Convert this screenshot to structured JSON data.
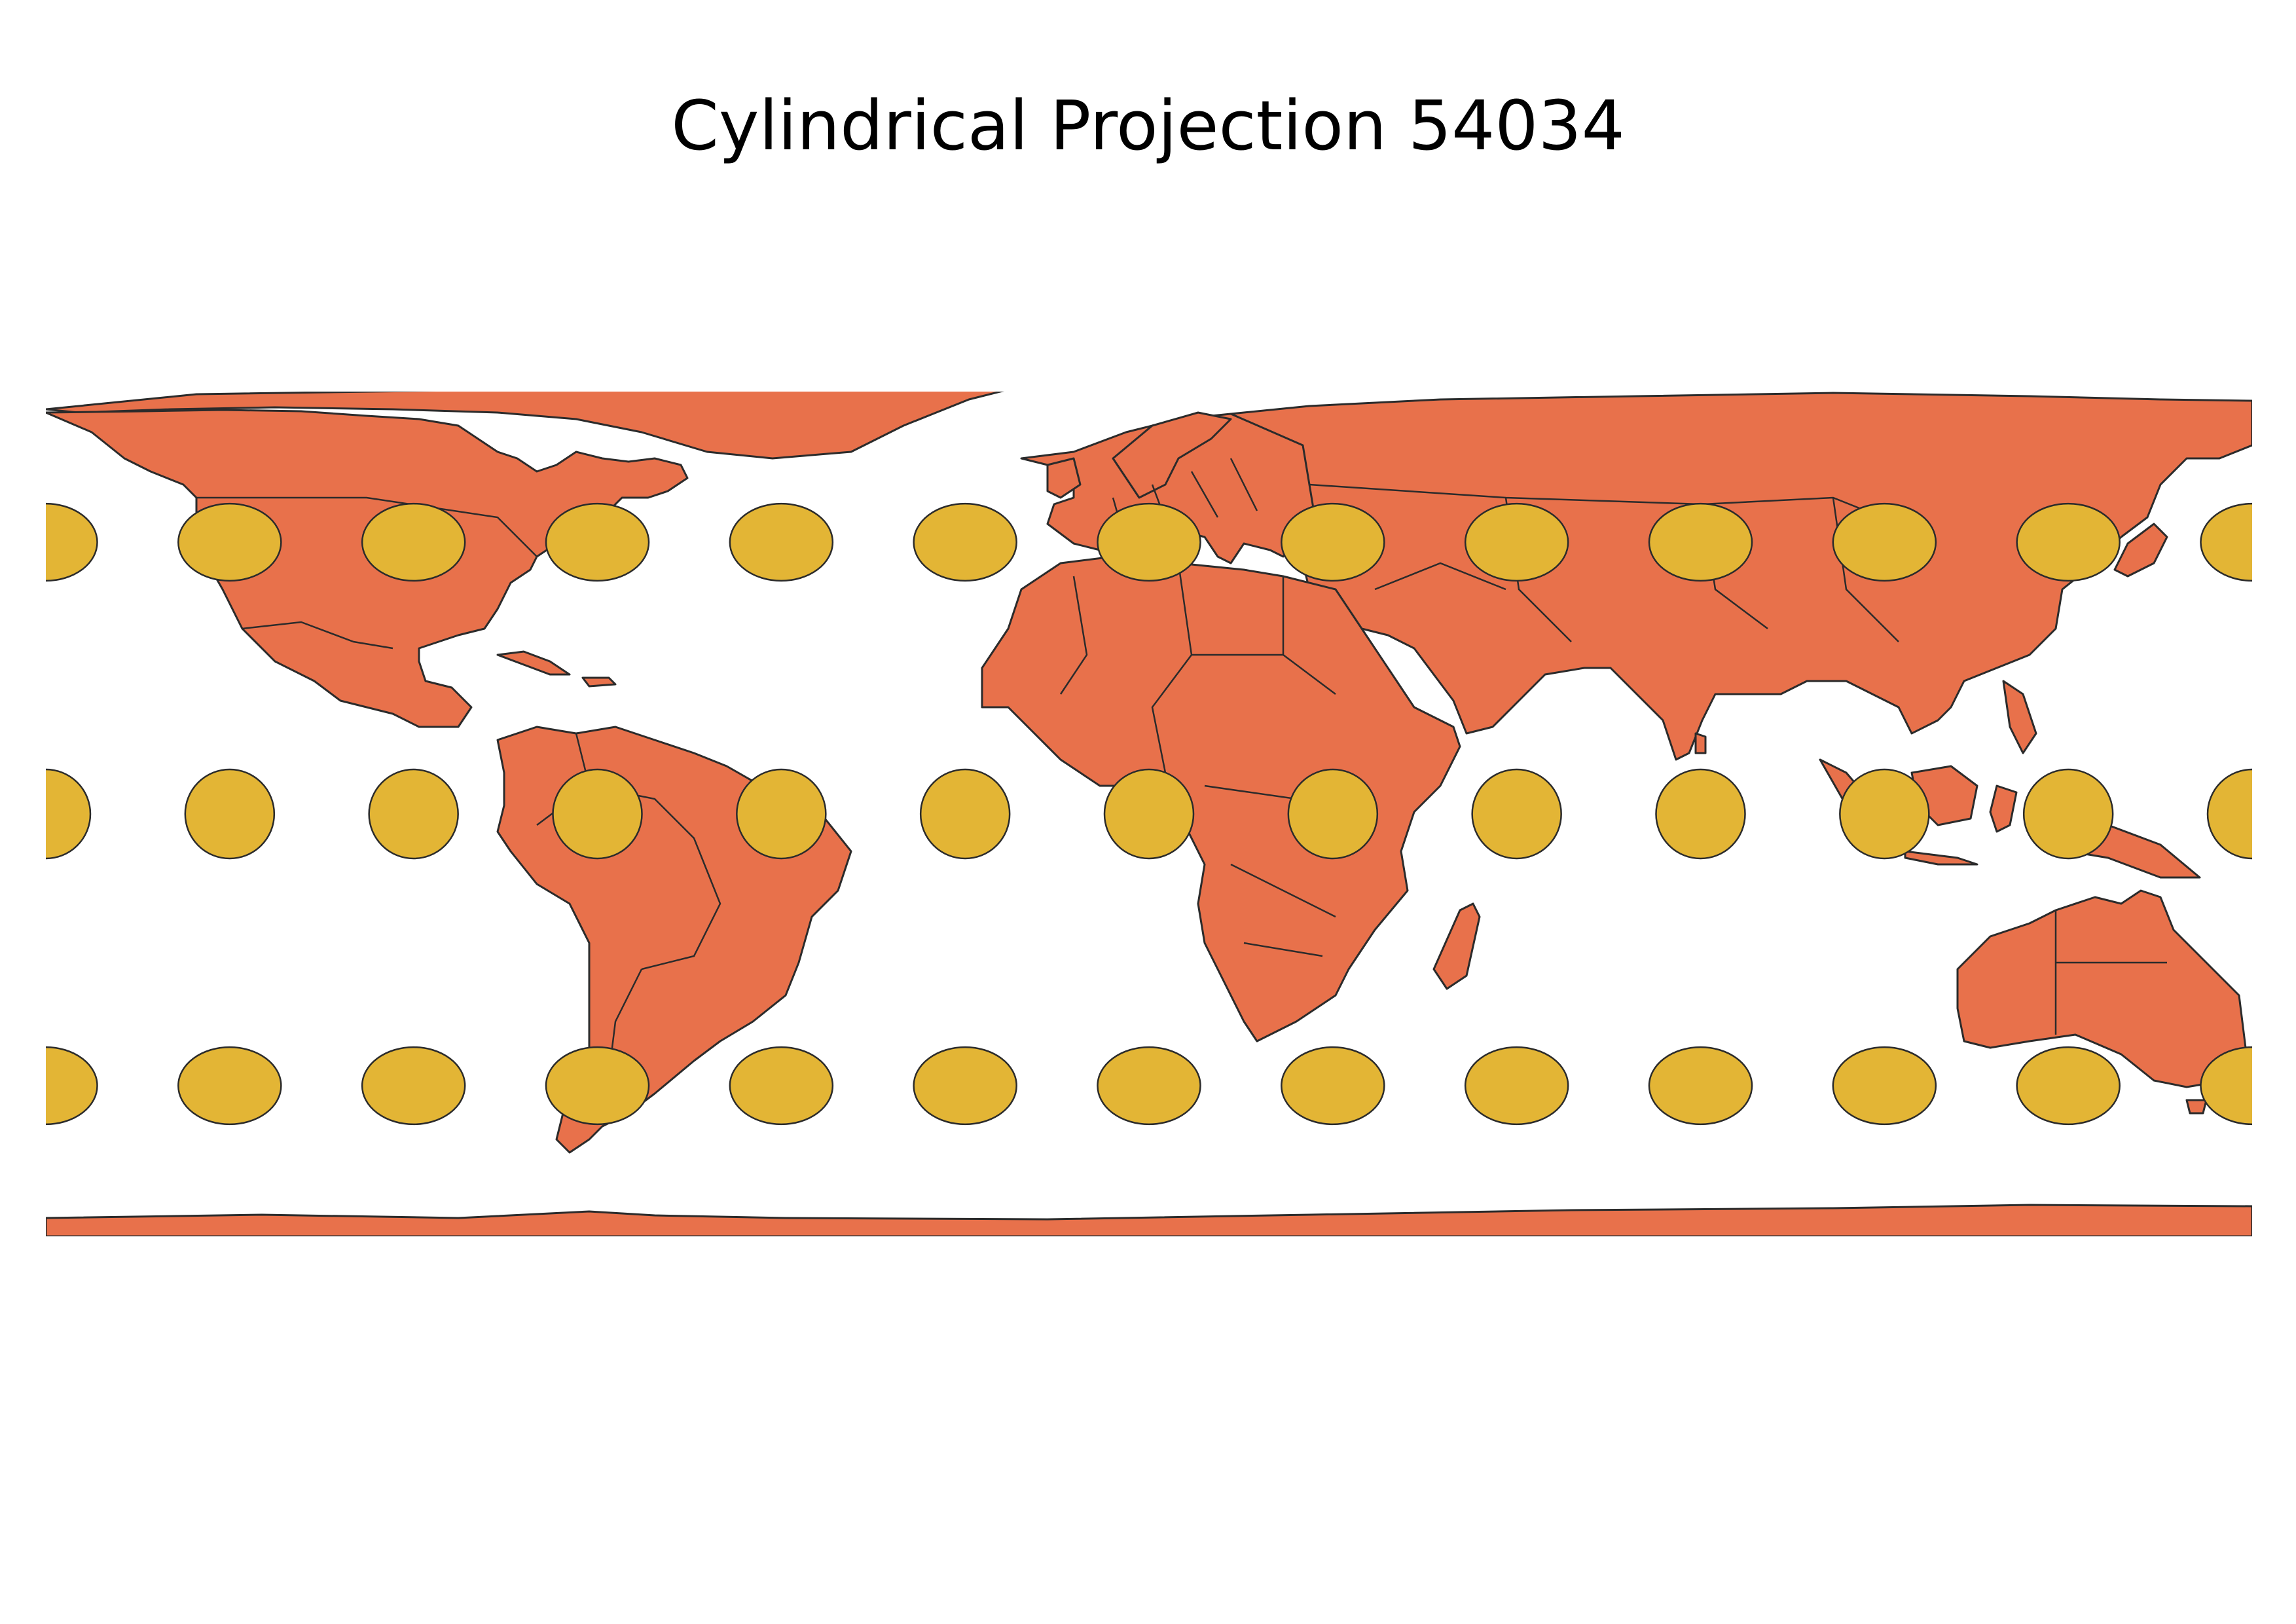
{
  "title": "Cylindrical Projection 54034",
  "colors": {
    "land": "#e8714b",
    "indicatrix": "#e3b535",
    "outline": "#2b2b2b",
    "background": "#ffffff"
  },
  "indicatrix_grid": {
    "longitudes": [
      -180,
      -150,
      -120,
      -90,
      -60,
      -30,
      0,
      30,
      60,
      90,
      120,
      150,
      180
    ],
    "latitudes": [
      60,
      30,
      0,
      -30,
      -60
    ]
  }
}
